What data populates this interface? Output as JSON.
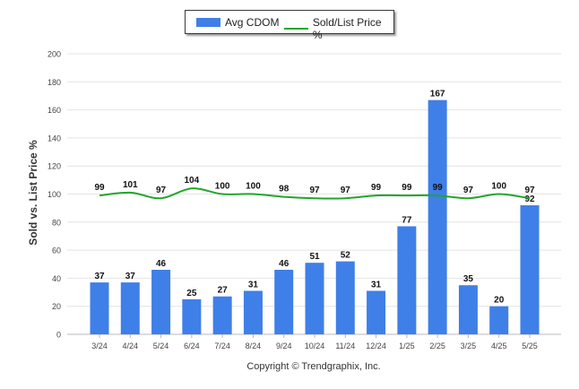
{
  "chart_data": {
    "type": "bar",
    "categories": [
      "3/24",
      "4/24",
      "5/24",
      "6/24",
      "7/24",
      "8/24",
      "9/24",
      "10/24",
      "11/24",
      "12/24",
      "1/25",
      "2/25",
      "3/25",
      "4/25",
      "5/25"
    ],
    "series": [
      {
        "name": "Avg CDOM",
        "type": "bar",
        "color": "#3f7fe8",
        "values": [
          37,
          37,
          46,
          25,
          27,
          31,
          46,
          51,
          52,
          31,
          77,
          167,
          35,
          20,
          92
        ]
      },
      {
        "name": "Sold/List Price %",
        "type": "line",
        "color": "#22a62a",
        "values": [
          99,
          101,
          97,
          104,
          100,
          100,
          98,
          97,
          97,
          99,
          99,
          99,
          97,
          100,
          97
        ]
      }
    ],
    "ylabel": "Sold vs. List Price %",
    "ylim": [
      0,
      200
    ],
    "yticks": [
      0,
      20,
      40,
      60,
      80,
      100,
      120,
      140,
      160,
      180,
      200
    ],
    "grid": true,
    "legend": "top-center"
  },
  "footer": {
    "copyright": "Copyright © Trendgraphix, Inc."
  }
}
